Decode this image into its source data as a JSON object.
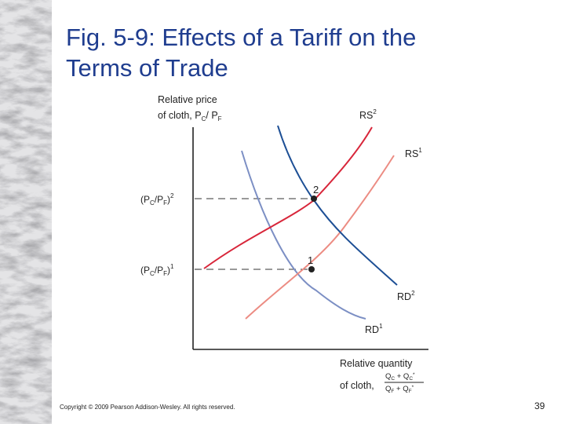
{
  "slide": {
    "title_line1": "Fig. 5-9: Effects of a Tariff on the",
    "title_line2": "Terms of Trade",
    "copyright": "Copyright © 2009 Pearson Addison-Wesley. All rights reserved.",
    "page_number": "39"
  },
  "diagram": {
    "y_axis_label_line1": "Relative price",
    "y_axis_label_line2": "of cloth, P",
    "y_axis_label_sub_c": "C",
    "y_axis_label_slash": "/ P",
    "y_axis_label_sub_f": "F",
    "x_axis_label_line1": "Relative quantity",
    "x_axis_label_line2": "of cloth,",
    "x_fraction_num": "Q",
    "x_fraction_num_sub": "C",
    "x_fraction_num_plus": " + Q",
    "x_fraction_num_sub2": "C",
    "x_fraction_num_star": "*",
    "x_fraction_den": "Q",
    "x_fraction_den_sub": "F",
    "x_fraction_den_plus": " + Q",
    "x_fraction_den_sub2": "F",
    "x_fraction_den_star": "*",
    "price_2_base": "(P",
    "price_2_sub_c": "C",
    "price_2_mid": "/P",
    "price_2_sub_f": "F",
    "price_2_close": ")",
    "price_2_sup": "2",
    "price_1_base": "(P",
    "price_1_sub_c": "C",
    "price_1_mid": "/P",
    "price_1_sub_f": "F",
    "price_1_close": ")",
    "price_1_sup": "1",
    "point_1": "1",
    "point_2": "2",
    "curves": {
      "rs2": {
        "base": "RS",
        "sup": "2",
        "color": "#d8263a"
      },
      "rs1": {
        "base": "RS",
        "sup": "1",
        "color": "#ec8c83"
      },
      "rd2": {
        "base": "RD",
        "sup": "2",
        "color": "#1d4f95"
      },
      "rd1": {
        "base": "RD",
        "sup": "1",
        "color": "#7c8fc4"
      }
    }
  }
}
